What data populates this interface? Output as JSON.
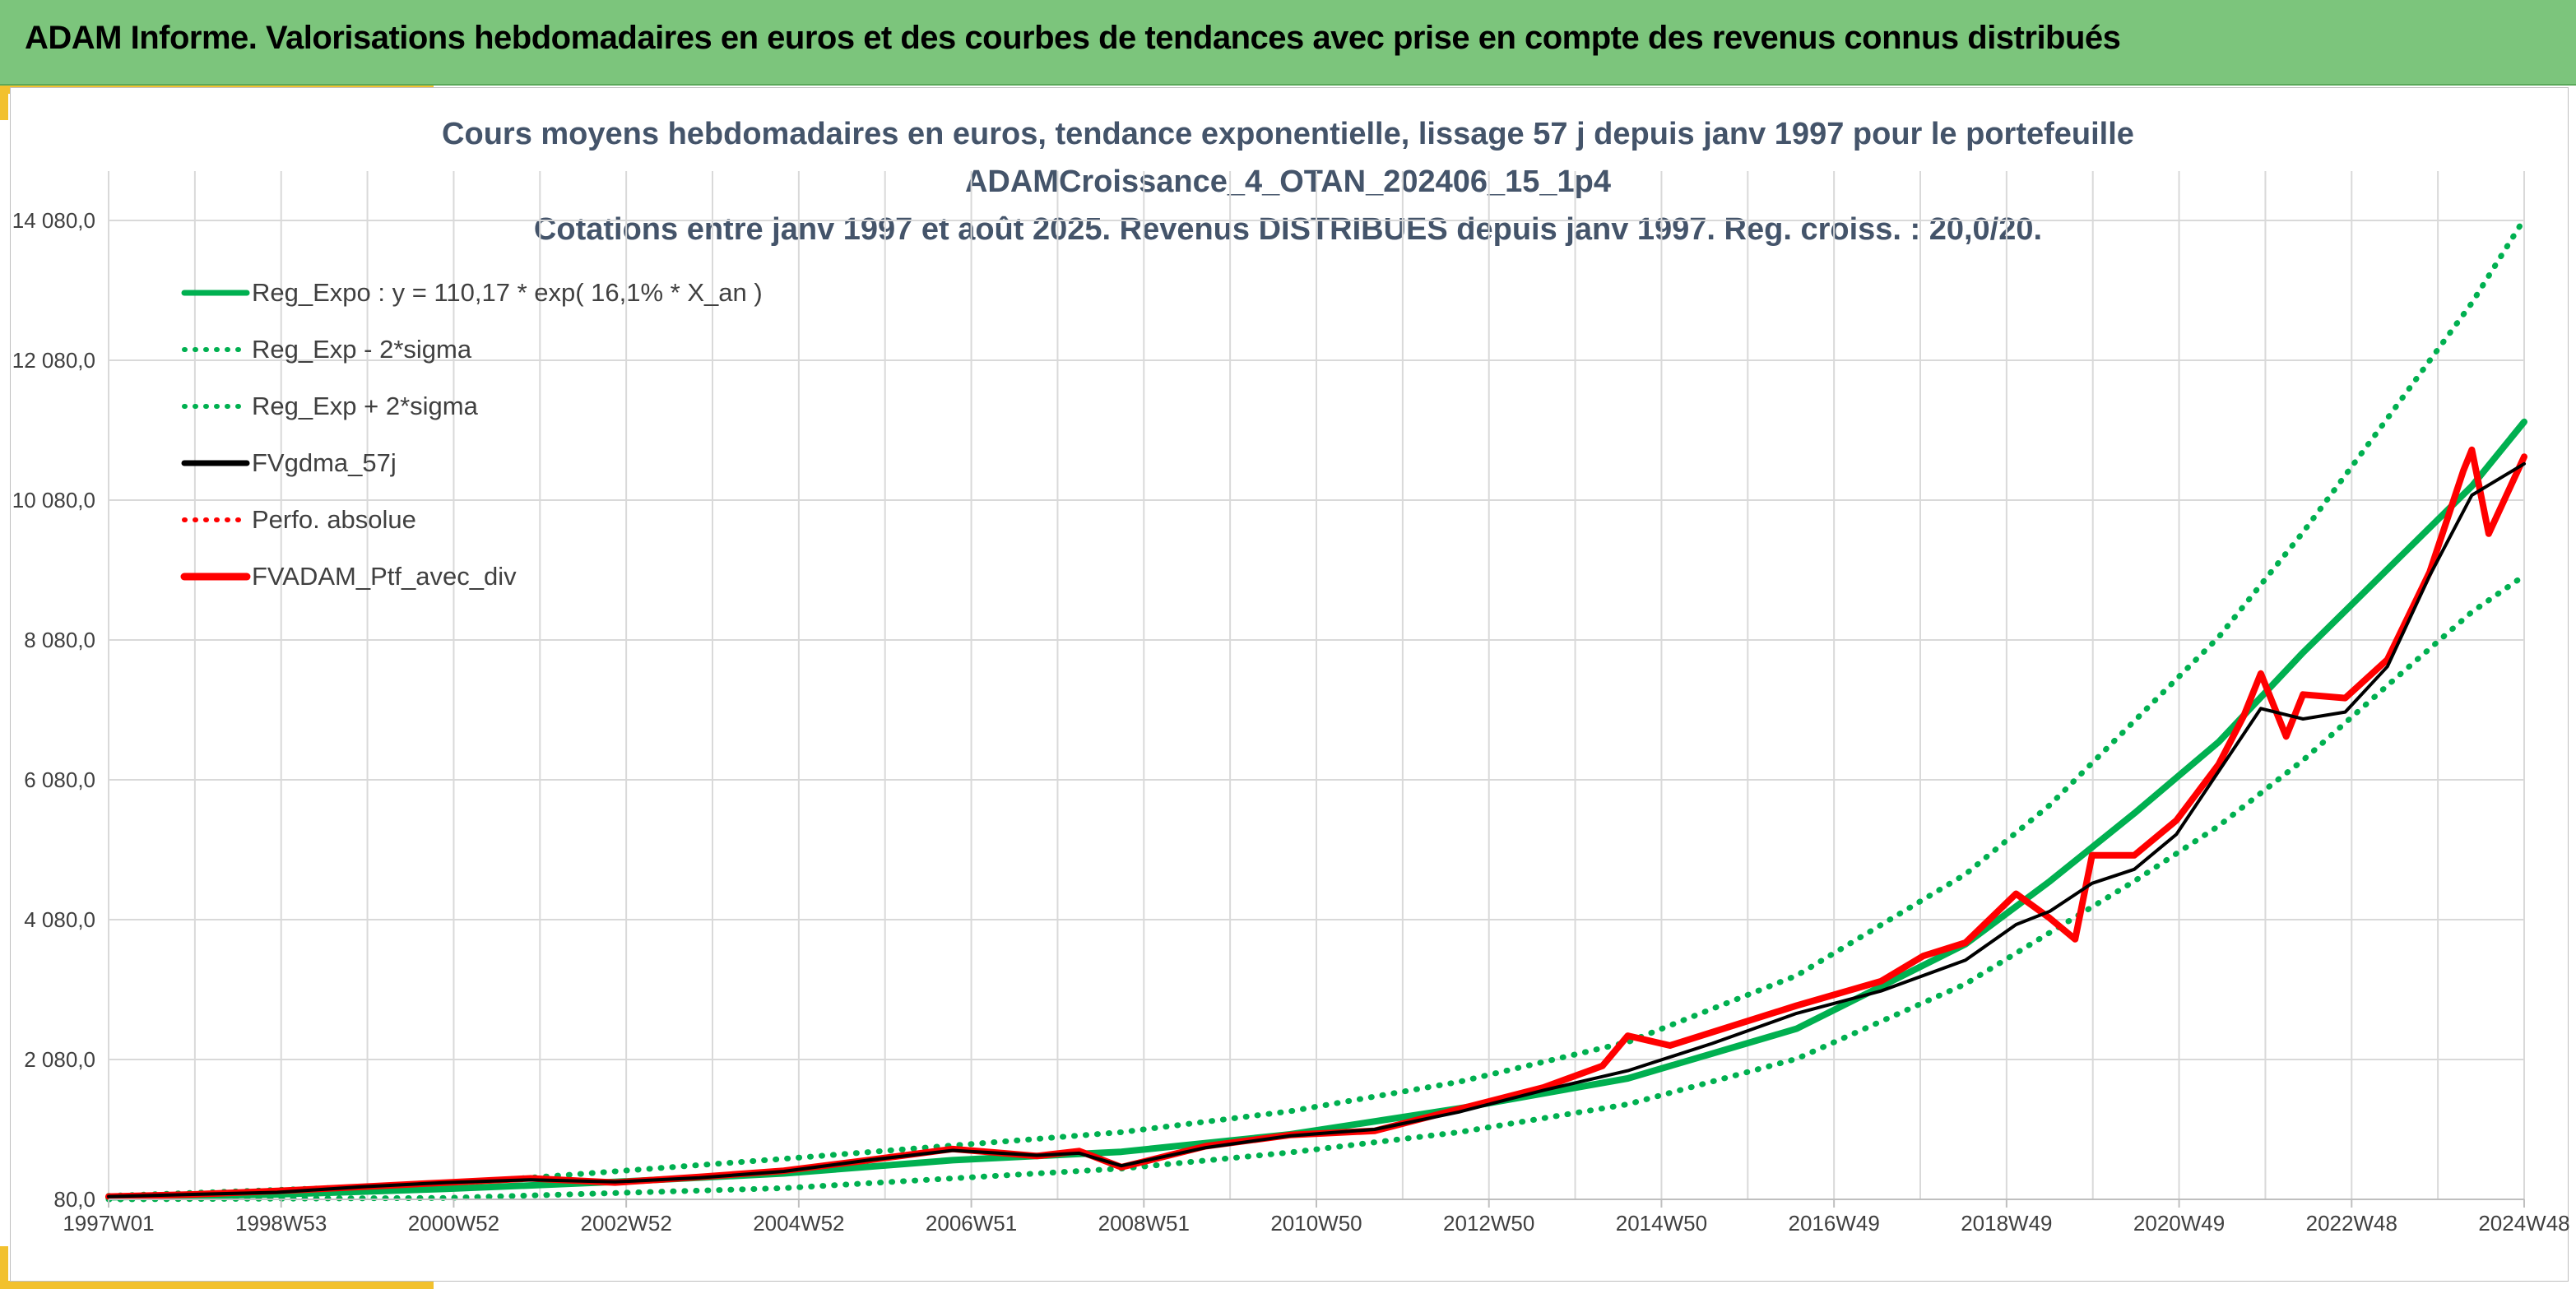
{
  "banner": {
    "title": "ADAM Informe. Valorisations hebdomadaires en euros et des courbes de tendances avec prise en compte des revenus connus distribués"
  },
  "colors": {
    "banner_bg": "#7cc57c",
    "accent_corner": "#f2c12e",
    "reg_expo": "#00b050",
    "fvgdma": "#000000",
    "fvadam": "#ff0000",
    "title_text": "#44546a"
  },
  "chart_data": {
    "type": "line",
    "title_lines": [
      "Cours moyens hebdomadaires en euros, tendance exponentielle, lissage 57 j depuis janv 1997 pour le portefeuille",
      "ADAMCroissance_4_OTAN_202406_15_1p4",
      "Cotations entre janv 1997 et août 2025. Revenus DISTRIBUES depuis janv 1997. Reg. croiss. : 20,0/20."
    ],
    "x_axis": {
      "tick_labels": [
        "1997W01",
        "1998W53",
        "2000W52",
        "2002W52",
        "2004W52",
        "2006W51",
        "2008W51",
        "2010W50",
        "2012W50",
        "2014W50",
        "2016W49",
        "2018W49",
        "2020W49",
        "2022W48",
        "2024W48"
      ],
      "range_years": [
        1997.0,
        2025.62
      ]
    },
    "y_axis": {
      "tick_labels": [
        "80,0",
        "2 080,0",
        "4 080,0",
        "6 080,0",
        "8 080,0",
        "10 080,0",
        "12 080,0",
        "14 080,0"
      ],
      "range": [
        80,
        14080
      ],
      "gridlines": true
    },
    "legend": {
      "position": "top-left",
      "entries": [
        {
          "label": "Reg_Expo : y = 110,17 * exp( 16,1% *  X_an )",
          "color": "#00b050",
          "style": "solid"
        },
        {
          "label": "Reg_Exp - 2*sigma",
          "color": "#00b050",
          "style": "dotted"
        },
        {
          "label": "Reg_Exp + 2*sigma",
          "color": "#00b050",
          "style": "dotted"
        },
        {
          "label": "FVgdma_57j",
          "color": "#000000",
          "style": "solid"
        },
        {
          "label": "Perfo. absolue",
          "color": "#ff0000",
          "style": "dotted"
        },
        {
          "label": "FVADAM_Ptf_avec_div",
          "color": "#ff0000",
          "style": "solid-thick"
        }
      ]
    },
    "series": [
      {
        "name": "Reg_Expo : y = 110,17 * exp( 16,1% *  X_an )",
        "x": [
          1997.0,
          1999.0,
          2001.0,
          2003.0,
          2005.0,
          2007.0,
          2009.0,
          2011.0,
          2013.0,
          2015.0,
          2017.0,
          2019.0,
          2020.0,
          2021.0,
          2022.0,
          2023.0,
          2024.0,
          2025.0,
          2025.62
        ],
        "y": [
          110,
          150,
          230,
          330,
          450,
          640,
          760,
          1010,
          1380,
          1810,
          2520,
          3730,
          4630,
          5600,
          6620,
          7900,
          9090,
          10280,
          11200
        ]
      },
      {
        "name": "Reg_Exp - 2*sigma",
        "x": [
          1997.0,
          2001.0,
          2005.0,
          2009.0,
          2011.0,
          2013.0,
          2015.0,
          2017.0,
          2019.0,
          2021.0,
          2022.0,
          2023.0,
          2024.0,
          2025.0,
          2025.62
        ],
        "y": [
          80,
          100,
          240,
          520,
          750,
          1040,
          1440,
          2090,
          3160,
          4630,
          5420,
          6360,
          7430,
          8480,
          9000
        ]
      },
      {
        "name": "Reg_Exp + 2*sigma",
        "x": [
          1997.0,
          2001.0,
          2005.0,
          2009.0,
          2011.0,
          2013.0,
          2015.0,
          2017.0,
          2019.0,
          2020.0,
          2021.0,
          2022.0,
          2023.0,
          2024.0,
          2025.0,
          2025.62
        ],
        "y": [
          130,
          300,
          660,
          1040,
          1340,
          1760,
          2330,
          3280,
          4730,
          5720,
          6920,
          8120,
          9620,
          11250,
          12900,
          14100
        ]
      },
      {
        "name": "FVgdma_57j",
        "x": [
          1997.0,
          1998.0,
          1999.0,
          2000.0,
          2001.0,
          2002.0,
          2003.0,
          2004.0,
          2005.0,
          2006.0,
          2007.0,
          2008.0,
          2008.5,
          2009.0,
          2010.0,
          2011.0,
          2012.0,
          2013.0,
          2014.0,
          2015.0,
          2016.0,
          2017.0,
          2018.0,
          2019.0,
          2019.6,
          2020.0,
          2020.5,
          2021.0,
          2021.5,
          2022.0,
          2022.5,
          2023.0,
          2023.5,
          2024.0,
          2024.5,
          2025.0,
          2025.62
        ],
        "y": [
          120,
          150,
          180,
          260,
          320,
          360,
          330,
          390,
          480,
          640,
          780,
          710,
          740,
          560,
          820,
          990,
          1080,
          1330,
          1640,
          1920,
          2310,
          2740,
          3060,
          3500,
          4010,
          4200,
          4600,
          4800,
          5300,
          6200,
          7100,
          6950,
          7050,
          7700,
          9000,
          10150,
          10600
        ]
      },
      {
        "name": "FVADAM_Ptf_avec_div",
        "x": [
          1997.0,
          1998.0,
          1999.0,
          2000.0,
          2001.0,
          2002.0,
          2003.0,
          2004.0,
          2005.0,
          2006.0,
          2007.0,
          2008.0,
          2008.5,
          2009.0,
          2010.0,
          2011.0,
          2012.0,
          2013.0,
          2014.0,
          2014.7,
          2015.0,
          2015.5,
          2016.0,
          2017.0,
          2018.0,
          2018.5,
          2019.0,
          2019.6,
          2020.0,
          2020.3,
          2020.5,
          2021.0,
          2021.5,
          2022.0,
          2022.3,
          2022.5,
          2022.8,
          2023.0,
          2023.5,
          2024.0,
          2024.5,
          2024.9,
          2025.0,
          2025.2,
          2025.62
        ],
        "y": [
          120,
          150,
          200,
          260,
          320,
          380,
          320,
          400,
          490,
          640,
          800,
          700,
          770,
          540,
          840,
          1000,
          1060,
          1370,
          1680,
          1990,
          2420,
          2280,
          2470,
          2850,
          3200,
          3560,
          3750,
          4450,
          4100,
          3800,
          5000,
          5000,
          5500,
          6300,
          7000,
          7600,
          6700,
          7300,
          7250,
          7800,
          9050,
          10500,
          10800,
          9600,
          10700
        ]
      }
    ]
  }
}
